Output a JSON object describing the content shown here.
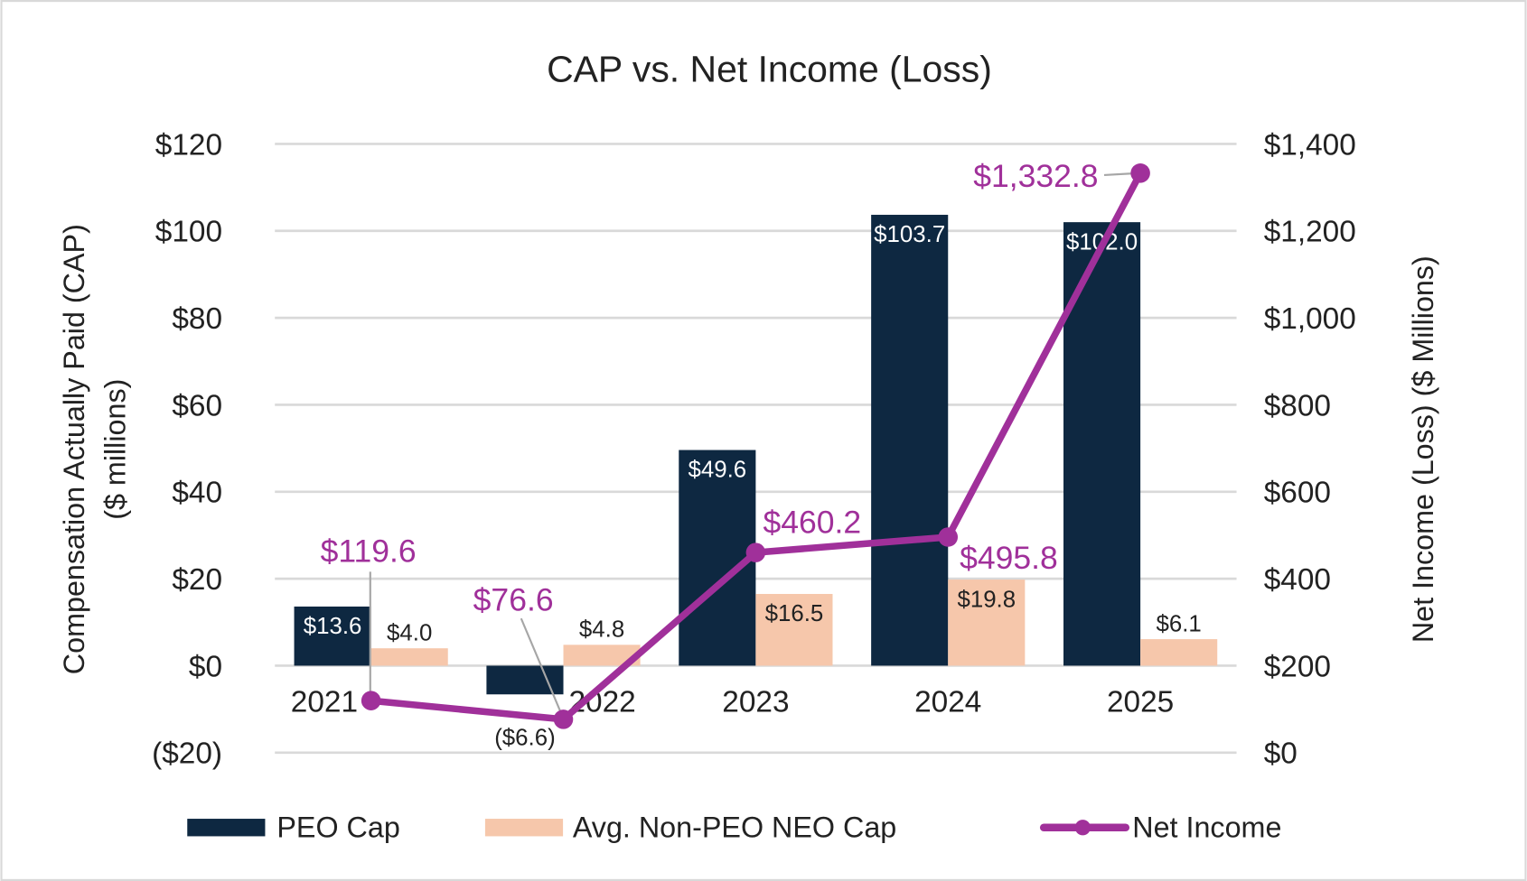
{
  "chart_data": {
    "type": "bar",
    "title": "CAP vs. Net Income (Loss)",
    "xlabel": "",
    "ylabel": [
      "Compensation Actually Paid (CAP)",
      "($ millions)"
    ],
    "y2label": "Net Income (Loss) ($ Millions)",
    "categories": [
      "2021",
      "2022",
      "2023",
      "2024",
      "2025"
    ],
    "ylim": [
      -20,
      120
    ],
    "y2lim": [
      0,
      1400
    ],
    "yticks": [
      -20,
      0,
      20,
      40,
      60,
      80,
      100,
      120
    ],
    "ytick_labels": [
      "($20)",
      "$0",
      "$20",
      "$40",
      "$60",
      "$80",
      "$100",
      "$120"
    ],
    "y2ticks": [
      0,
      200,
      400,
      600,
      800,
      1000,
      1200,
      1400
    ],
    "y2tick_labels": [
      "$0",
      "$200",
      "$400",
      "$600",
      "$800",
      "$1,000",
      "$1,200",
      "$1,400"
    ],
    "grid": true,
    "legend_position": "bottom",
    "series": [
      {
        "name": "PEO Cap",
        "type": "bar",
        "axis": "left",
        "color": "#0e2841",
        "values": [
          13.6,
          -6.6,
          49.6,
          103.7,
          102.0
        ],
        "labels": [
          "$13.6",
          "($6.6)",
          "$49.6",
          "$103.7",
          "$102.0"
        ]
      },
      {
        "name": "Avg. Non-PEO NEO Cap",
        "type": "bar",
        "axis": "left",
        "color": "#f6c7ab",
        "values": [
          4.0,
          4.8,
          16.5,
          19.8,
          6.1
        ],
        "labels": [
          "$4.0",
          "$4.8",
          "$16.5",
          "$19.8",
          "$6.1"
        ]
      },
      {
        "name": "Net Income",
        "type": "line",
        "axis": "right",
        "color": "#a0309a",
        "values": [
          119.6,
          76.6,
          460.2,
          495.8,
          1332.8
        ],
        "labels": [
          "$119.6",
          "$76.6",
          "$460.2",
          "$495.8",
          "$1,332.8"
        ]
      }
    ]
  }
}
